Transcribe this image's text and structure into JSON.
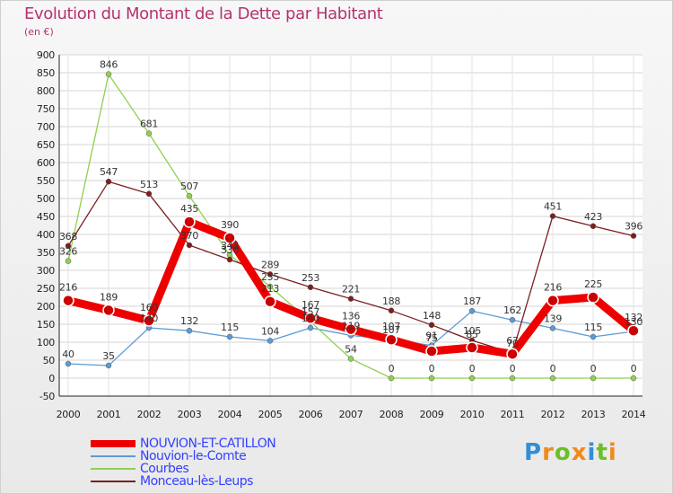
{
  "header": {
    "title": "Evolution du Montant de la Dette par Habitant",
    "unit": "(en €)"
  },
  "brand": {
    "name": "Proxiti",
    "letters": [
      "P",
      "r",
      "o",
      "x",
      "i",
      "t",
      "i"
    ]
  },
  "chart_data": {
    "type": "line",
    "title": "Evolution du Montant de la Dette par Habitant",
    "ylabel": "(en €)",
    "xlabel": "",
    "ylim": [
      -50,
      900
    ],
    "yticks": [
      -50,
      0,
      50,
      100,
      150,
      200,
      250,
      300,
      350,
      400,
      450,
      500,
      550,
      600,
      650,
      700,
      750,
      800,
      850,
      900
    ],
    "categories": [
      "2000",
      "2001",
      "2002",
      "2003",
      "2004",
      "2005",
      "2006",
      "2007",
      "2008",
      "2009",
      "2010",
      "2011",
      "2012",
      "2013",
      "2014"
    ],
    "legend_position": "bottom-left",
    "series": [
      {
        "name": "Nouvion-le-Comte",
        "color": "#5b9bd5",
        "emphasis": false,
        "values": [
          40,
          35,
          140,
          132,
          115,
          104,
          140,
          119,
          107,
          91,
          187,
          162,
          139,
          115,
          130
        ]
      },
      {
        "name": "Courbes",
        "color": "#8fd14f",
        "emphasis": false,
        "values": [
          326,
          846,
          681,
          507,
          343,
          255,
          157,
          54,
          0,
          0,
          0,
          0,
          0,
          0,
          0
        ]
      },
      {
        "name": "Monceau-lès-Leups",
        "color": "#7b1f1f",
        "emphasis": false,
        "values": [
          368,
          547,
          513,
          370,
          330,
          289,
          253,
          221,
          188,
          148,
          105,
          70,
          451,
          423,
          396
        ]
      },
      {
        "name": "NOUVION-ET-CATILLON",
        "color": "#ee0000",
        "emphasis": true,
        "values": [
          216,
          189,
          160,
          435,
          390,
          213,
          167,
          136,
          107,
          75,
          85,
          67,
          216,
          225,
          132
        ]
      }
    ],
    "legend_order": [
      "NOUVION-ET-CATILLON",
      "Nouvion-le-Comte",
      "Courbes",
      "Monceau-lès-Leups"
    ],
    "point_labels": [
      {
        "series": "Nouvion-le-Comte",
        "labels": [
          "40",
          "35",
          "140",
          "132",
          "115",
          "104",
          "140",
          "119",
          "107",
          "91",
          "187",
          "162",
          "139",
          "115",
          "130"
        ]
      },
      {
        "series": "Courbes",
        "labels": [
          "326",
          "846",
          "681",
          "507",
          "343",
          "255",
          "157",
          "54",
          "0",
          "0",
          "0",
          "0",
          "0",
          "0",
          "0"
        ]
      },
      {
        "series": "Monceau-lès-Leups",
        "labels": [
          "368",
          "547",
          "513",
          "370",
          "330",
          "289",
          "253",
          "221",
          "188",
          "148",
          "105",
          "70",
          "451",
          "423",
          "396"
        ]
      },
      {
        "series": "NOUVION-ET-CATILLON",
        "labels": [
          "216",
          "189",
          "160",
          "435",
          "390",
          "213",
          "167",
          "136",
          "107",
          "75",
          "85",
          "67",
          "216",
          "225",
          "132"
        ]
      }
    ]
  }
}
